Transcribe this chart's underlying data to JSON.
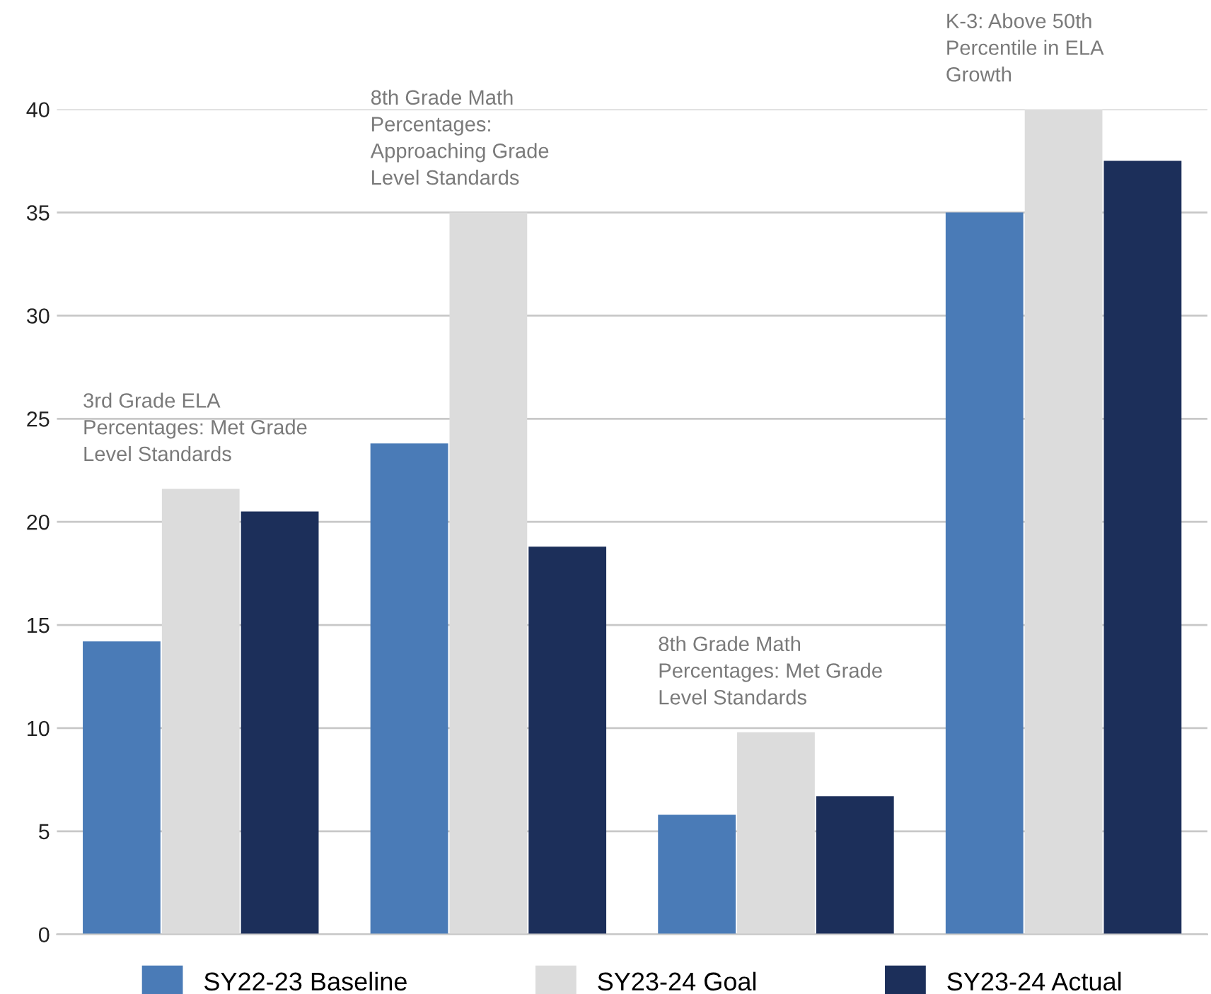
{
  "chart_data": {
    "type": "bar",
    "categories": [
      null,
      null,
      null,
      null
    ],
    "series": [
      {
        "name": "SY22-23 Baseline",
        "color": "#4a7bb7",
        "values": [
          14.2,
          23.8,
          5.8,
          35
        ]
      },
      {
        "name": "SY23-24 Goal",
        "color": "#dcdcdc",
        "values": [
          21.6,
          35,
          9.8,
          40
        ]
      },
      {
        "name": "SY23-24 Actual",
        "color": "#1c2f5a",
        "values": [
          20.5,
          18.8,
          6.7,
          37.5
        ]
      }
    ],
    "annotations": [
      "3rd Grade ELA\nPercentages: Met Grade\nLevel Standards",
      "8th Grade Math\nPercentages:\nApproaching Grade\nLevel Standards",
      "8th Grade Math\nPercentages: Met Grade\nLevel Standards",
      "K-3: Above 50th\nPercentile in ELA\nGrowth"
    ],
    "ylim": [
      0,
      40
    ],
    "yticks": [
      0,
      5,
      10,
      15,
      20,
      25,
      30,
      35,
      40
    ],
    "grid": "y",
    "legend": "bottom"
  }
}
